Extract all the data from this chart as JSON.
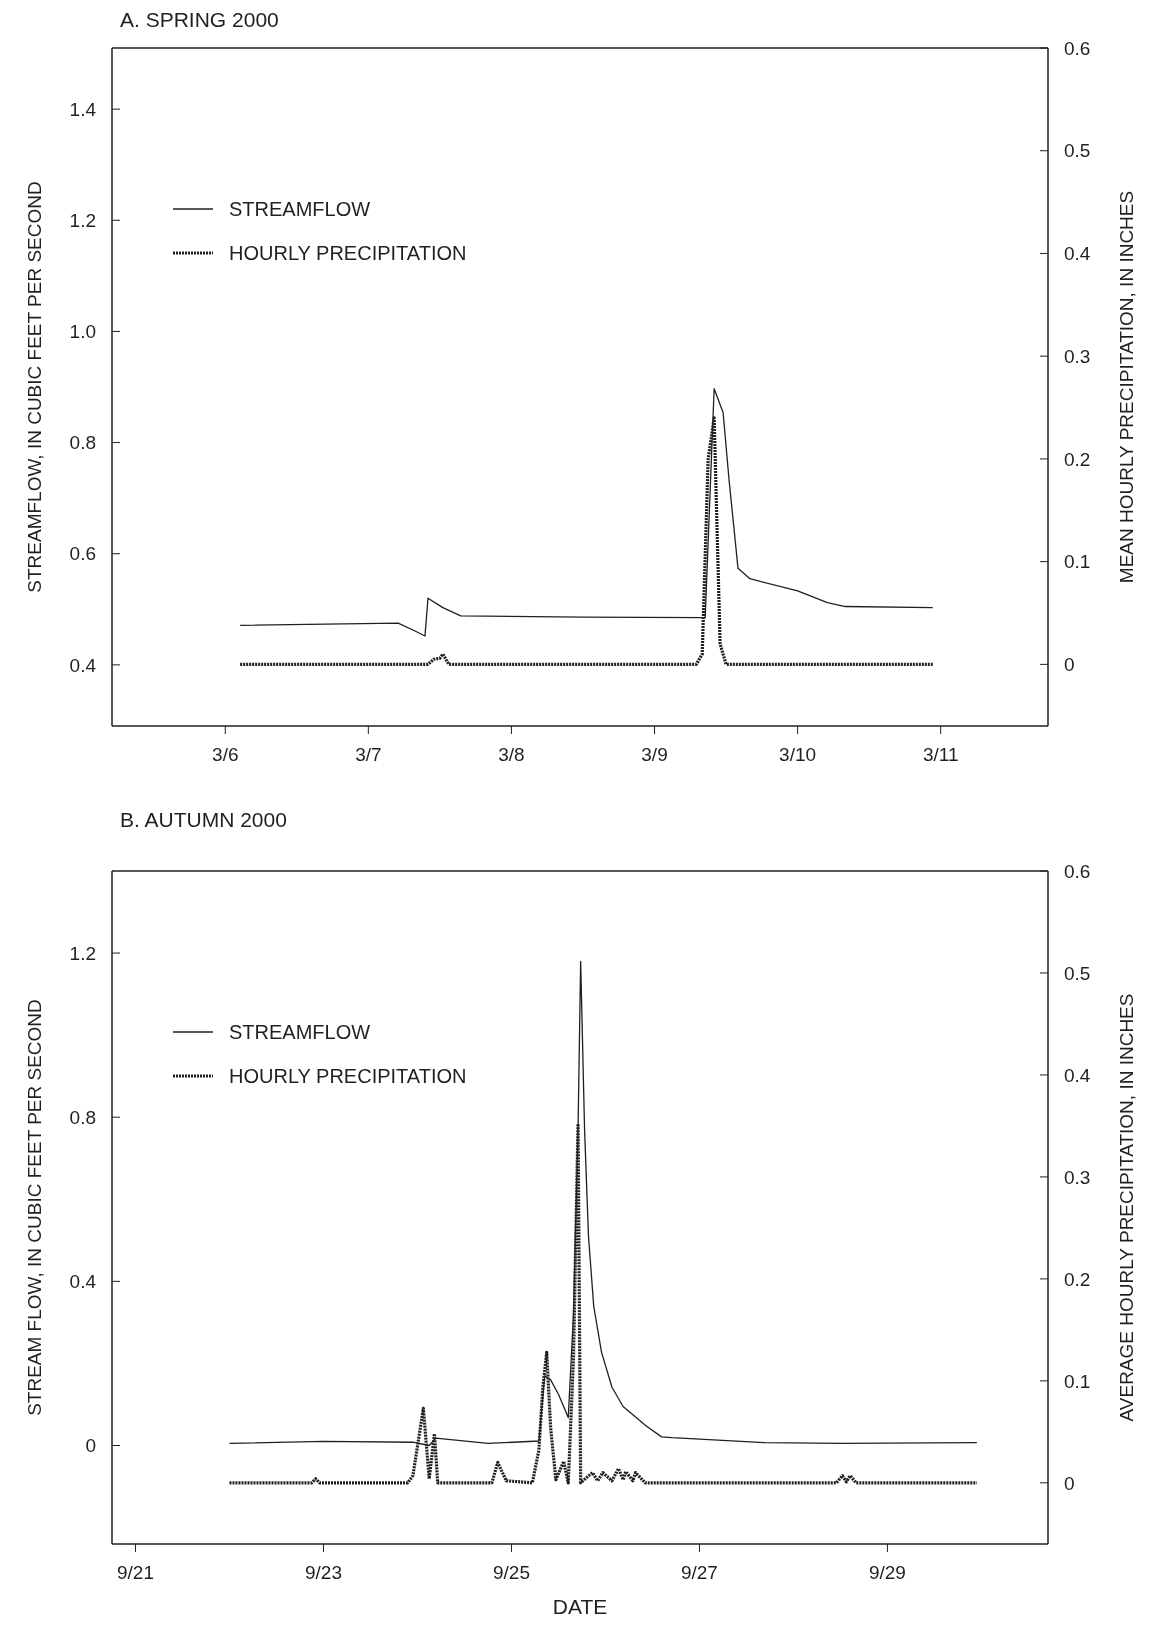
{
  "chart_data": [
    {
      "type": "line",
      "title": "A. SPRING 2000",
      "ylabel": "STREAMFLOW, IN CUBIC FEET PER SECOND",
      "y2label": "MEAN HOURLY PRECIPITATION, IN INCHES",
      "xlim": [
        "--03-05T05:00",
        "--03-11T18:00"
      ],
      "xticks": [
        {
          "value": "--03-06",
          "label": "3/6"
        },
        {
          "value": "--03-07",
          "label": "3/7"
        },
        {
          "value": "--03-08",
          "label": "3/8"
        },
        {
          "value": "--03-09",
          "label": "3/9"
        },
        {
          "value": "--03-10",
          "label": "3/10"
        },
        {
          "value": "--03-11",
          "label": "3/11"
        }
      ],
      "ylim": [
        0.29,
        1.51
      ],
      "yticks": [
        {
          "value": 0.4,
          "label": "0.4"
        },
        {
          "value": 0.6,
          "label": "0.6"
        },
        {
          "value": 0.8,
          "label": "0.8"
        },
        {
          "value": 1.0,
          "label": "1.0"
        },
        {
          "value": 1.2,
          "label": "1.2"
        },
        {
          "value": 1.4,
          "label": "1.4"
        }
      ],
      "y2lim": [
        -0.06,
        0.6
      ],
      "y2ticks": [
        0,
        0.1,
        0.2,
        0.3,
        0.4,
        0.5,
        0.6
      ],
      "legend": "top left",
      "series": [
        {
          "name": "STREAMFLOW",
          "color": "#231f20",
          "line_style": "solid",
          "x": [
            "--03-06T02:30",
            "--03-07T05:00",
            "--03-07T08:00",
            "--03-07T09:30",
            "--03-07T10:00",
            "--03-07T12:30",
            "--03-07T15:30",
            "--03-08T12:00",
            "--03-09T08:30",
            "--03-09T10:00",
            "--03-09T11:30",
            "--03-09T12:30",
            "--03-09T14:00",
            "--03-09T16:00",
            "--03-10T00:00",
            "--03-10T05:00",
            "--03-10T08:00",
            "--03-10T22:40"
          ],
          "values": [
            0.471,
            0.475,
            0.46,
            0.452,
            0.52,
            0.503,
            0.488,
            0.486,
            0.485,
            0.897,
            0.854,
            0.733,
            0.574,
            0.555,
            0.533,
            0.512,
            0.505,
            0.503
          ]
        },
        {
          "name": "HOURLY PRECIPITATION",
          "color": "#231f20",
          "line_style": "dotted",
          "axis": "y2",
          "x": [
            "--03-06T02:30",
            "--03-07T10:00",
            "--03-07T11:00",
            "--03-07T12:00",
            "--03-07T12:30",
            "--03-07T13:30",
            "--03-09T07:00",
            "--03-09T08:00",
            "--03-09T09:00",
            "--03-09T10:00",
            "--03-09T11:00",
            "--03-09T12:00",
            "--03-10T22:40"
          ],
          "values": [
            0,
            0,
            0.005,
            0.006,
            0.01,
            0,
            0,
            0.01,
            0.2,
            0.24,
            0.02,
            0,
            0
          ]
        }
      ]
    },
    {
      "type": "line",
      "title": "B. AUTUMN 2000",
      "xlabel": "DATE",
      "ylabel": "STREAM FLOW, IN CUBIC FEET PER SECOND",
      "y2label": "AVERAGE HOURLY PRECIPITATION, IN INCHES",
      "xlim": [
        "--09-20T18:00",
        "--09-30T17:00"
      ],
      "xticks": [
        {
          "value": "--09-21",
          "label": "9/21"
        },
        {
          "value": "--09-23",
          "label": "9/23"
        },
        {
          "value": "--09-25",
          "label": "9/25"
        },
        {
          "value": "--09-27",
          "label": "9/27"
        },
        {
          "value": "--09-29",
          "label": "9/29"
        }
      ],
      "ylim": [
        -0.24,
        1.4
      ],
      "yticks": [
        0,
        0.4,
        0.8,
        1.2
      ],
      "y2lim": [
        -0.06,
        0.6
      ],
      "y2ticks": [
        0,
        0.1,
        0.2,
        0.3,
        0.4,
        0.5,
        0.6
      ],
      "legend": "top left",
      "series": [
        {
          "name": "STREAMFLOW",
          "color": "#231f20",
          "line_style": "solid",
          "x": [
            "--09-22T00:00",
            "--09-23T00:00",
            "--09-23T22:50",
            "--09-24T03:00",
            "--09-24T04:40",
            "--09-24T18:00",
            "--09-25T07:00",
            "--09-25T08:30",
            "--09-25T10:00",
            "--09-25T12:00",
            "--09-25T14:30",
            "--09-25T15:50",
            "--09-25T17:00",
            "--09-25T17:40",
            "--09-25T18:40",
            "--09-25T19:40",
            "--09-25T21:00",
            "--09-25T23:00",
            "--09-26T01:40",
            "--09-26T04:30",
            "--09-26T10:20",
            "--09-26T14:20",
            "--09-26T17:00",
            "--09-27T16:40",
            "--09-28T12:20",
            "--09-29T22:50"
          ],
          "values": [
            0.005,
            0.01,
            0.008,
            0.0,
            0.018,
            0.005,
            0.011,
            0.17,
            0.16,
            0.125,
            0.068,
            0.32,
            0.77,
            1.18,
            0.77,
            0.51,
            0.34,
            0.227,
            0.142,
            0.095,
            0.048,
            0.021,
            0.019,
            0.007,
            0.005,
            0.007
          ]
        },
        {
          "name": "HOURLY PRECIPITATION",
          "color": "#231f20",
          "line_style": "dotted",
          "axis": "y2",
          "x": [
            "--09-22T00:00",
            "--09-22T21:00",
            "--09-22T22:00",
            "--09-22T23:00",
            "--09-23T21:30",
            "--09-23T22:50",
            "--09-24T01:30",
            "--09-24T03:00",
            "--09-24T04:20",
            "--09-24T05:10",
            "--09-24T19:00",
            "--09-24T20:30",
            "--09-24T22:40",
            "--09-25T05:20",
            "--09-25T07:00",
            "--09-25T08:00",
            "--09-25T09:00",
            "--09-25T10:00",
            "--09-25T11:20",
            "--09-25T13:20",
            "--09-25T14:30",
            "--09-25T15:50",
            "--09-25T17:00",
            "--09-25T17:40",
            "--09-25T20:40",
            "--09-25T22:00",
            "--09-25T23:20",
            "--09-26T01:40",
            "--09-26T03:20",
            "--09-26T04:30",
            "--09-26T05:10",
            "--09-26T07:00",
            "--09-26T07:40",
            "--09-26T10:10",
            "--09-28T11:00",
            "--09-28T12:30",
            "--09-28T13:30",
            "--09-28T14:30",
            "--09-28T16:00",
            "--09-29T22:50"
          ],
          "values": [
            0,
            0,
            0.004,
            0,
            0,
            0.007,
            0.073,
            0.004,
            0.048,
            0,
            0,
            0.02,
            0.002,
            0,
            0.032,
            0.093,
            0.128,
            0.054,
            0.003,
            0.021,
            0,
            0.122,
            0.352,
            0,
            0.01,
            0.002,
            0.01,
            0.002,
            0.014,
            0.003,
            0.011,
            0.002,
            0.01,
            0,
            0,
            0.007,
            0.001,
            0.007,
            0,
            0
          ]
        }
      ]
    }
  ]
}
